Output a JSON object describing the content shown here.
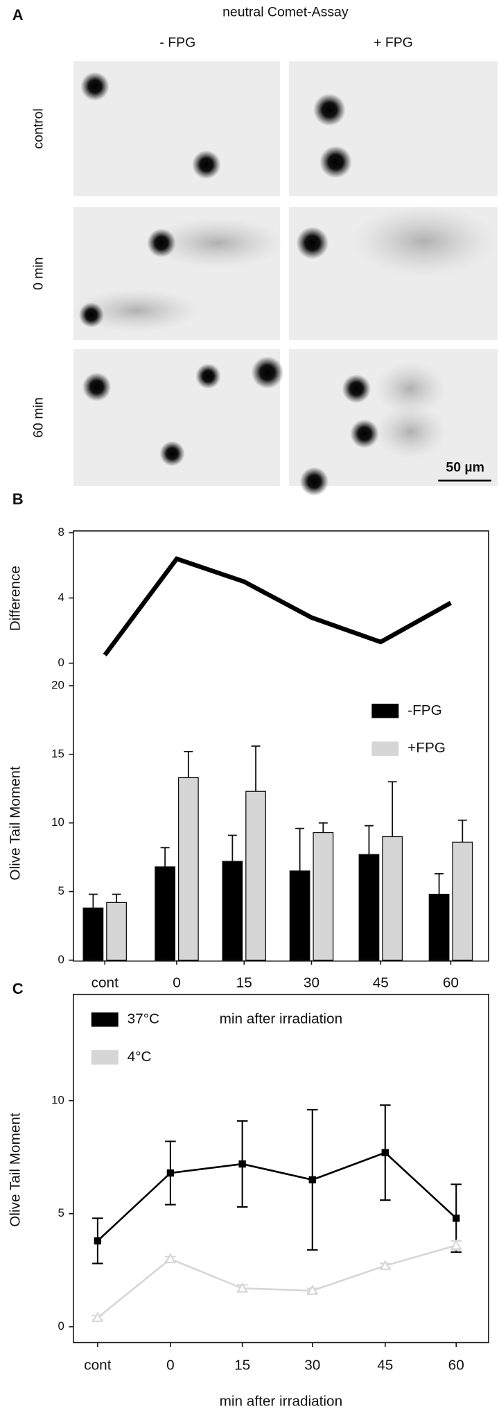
{
  "panel_a": {
    "label": "A",
    "title": "neutral Comet-Assay",
    "columns": [
      "- FPG",
      "+ FPG"
    ],
    "rows": [
      "control",
      "0 min",
      "60 min"
    ],
    "scale_bar": "50 µm"
  },
  "chart_data": [
    {
      "type": "line",
      "panel": "B",
      "y_label": "Difference",
      "color": "#000000",
      "values": [
        0.5,
        6.4,
        5.0,
        2.8,
        1.3,
        3.7
      ],
      "ylim": [
        0,
        8
      ],
      "yticks": [
        0,
        4,
        8
      ]
    },
    {
      "type": "bar",
      "y_label": "Olive Tail Moment",
      "x_label": "min after irradiation",
      "categories": [
        "cont",
        "0",
        "15",
        "30",
        "45",
        "60"
      ],
      "series": [
        {
          "name": "-FPG",
          "color": "#000000",
          "values": [
            3.8,
            6.8,
            7.2,
            6.5,
            7.7,
            4.8
          ],
          "errors": [
            1.0,
            1.4,
            1.9,
            3.1,
            2.1,
            1.5
          ]
        },
        {
          "name": "+FPG",
          "color": "#d6d6d6",
          "values": [
            4.2,
            13.3,
            12.3,
            9.3,
            9.0,
            8.6
          ],
          "errors": [
            0.6,
            1.9,
            3.3,
            0.7,
            4.0,
            1.6
          ]
        }
      ],
      "ylim": [
        0,
        20
      ],
      "yticks": [
        0,
        5,
        10,
        15,
        20
      ],
      "legend": "upper right"
    },
    {
      "type": "line",
      "panel": "C",
      "y_label": "Olive Tail Moment",
      "x_label": "min after irradiation",
      "categories": [
        "cont",
        "0",
        "15",
        "30",
        "45",
        "60"
      ],
      "series": [
        {
          "name": "37°C",
          "color": "#000000",
          "marker": "square",
          "values": [
            3.8,
            6.8,
            7.2,
            6.5,
            7.7,
            4.8
          ],
          "errors": [
            1.0,
            1.4,
            1.9,
            3.1,
            2.1,
            1.5
          ]
        },
        {
          "name": "4°C",
          "color": "#d6d6d6",
          "marker": "triangle",
          "values": [
            0.4,
            3.0,
            1.7,
            1.6,
            2.7,
            3.6
          ],
          "errors": [
            0.1,
            0.1,
            0.15,
            0.1,
            0.1,
            0.2
          ]
        }
      ],
      "ylim": [
        -0.7,
        14.7
      ],
      "yticks": [
        0,
        5,
        10
      ],
      "legend": "upper left"
    }
  ]
}
